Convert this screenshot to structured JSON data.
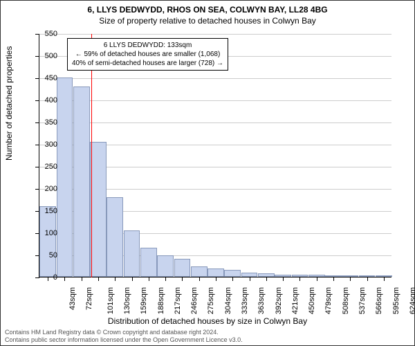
{
  "title_line1": "6, LLYS DEDWYDD, RHOS ON SEA, COLWYN BAY, LL28 4BG",
  "title_line2": "Size of property relative to detached houses in Colwyn Bay",
  "y_axis_title": "Number of detached properties",
  "x_axis_title": "Distribution of detached houses by size in Colwyn Bay",
  "footer_line1": "Contains HM Land Registry data © Crown copyright and database right 2024.",
  "footer_line2": "Contains public sector information licensed under the Open Government Licence v3.0.",
  "annotation": {
    "line1": "6 LLYS DEDWYDD: 133sqm",
    "line2": "← 59% of detached houses are smaller (1,068)",
    "line3": "40% of semi-detached houses are larger (728) →"
  },
  "chart": {
    "type": "histogram",
    "ylim": [
      0,
      550
    ],
    "ytick_step": 50,
    "bar_fill": "#c8d4ee",
    "bar_border": "#8899bb",
    "background": "#ffffff",
    "grid_color": "#cccccc",
    "marker_value": 133,
    "marker_color": "#ff0000",
    "x_categories": [
      "43sqm",
      "72sqm",
      "101sqm",
      "130sqm",
      "159sqm",
      "188sqm",
      "217sqm",
      "246sqm",
      "275sqm",
      "304sqm",
      "333sqm",
      "363sqm",
      "392sqm",
      "421sqm",
      "450sqm",
      "479sqm",
      "508sqm",
      "537sqm",
      "566sqm",
      "595sqm",
      "624sqm"
    ],
    "values": [
      160,
      450,
      430,
      305,
      180,
      105,
      65,
      48,
      40,
      24,
      18,
      15,
      10,
      8,
      5,
      5,
      4,
      3,
      3,
      2,
      2
    ]
  }
}
